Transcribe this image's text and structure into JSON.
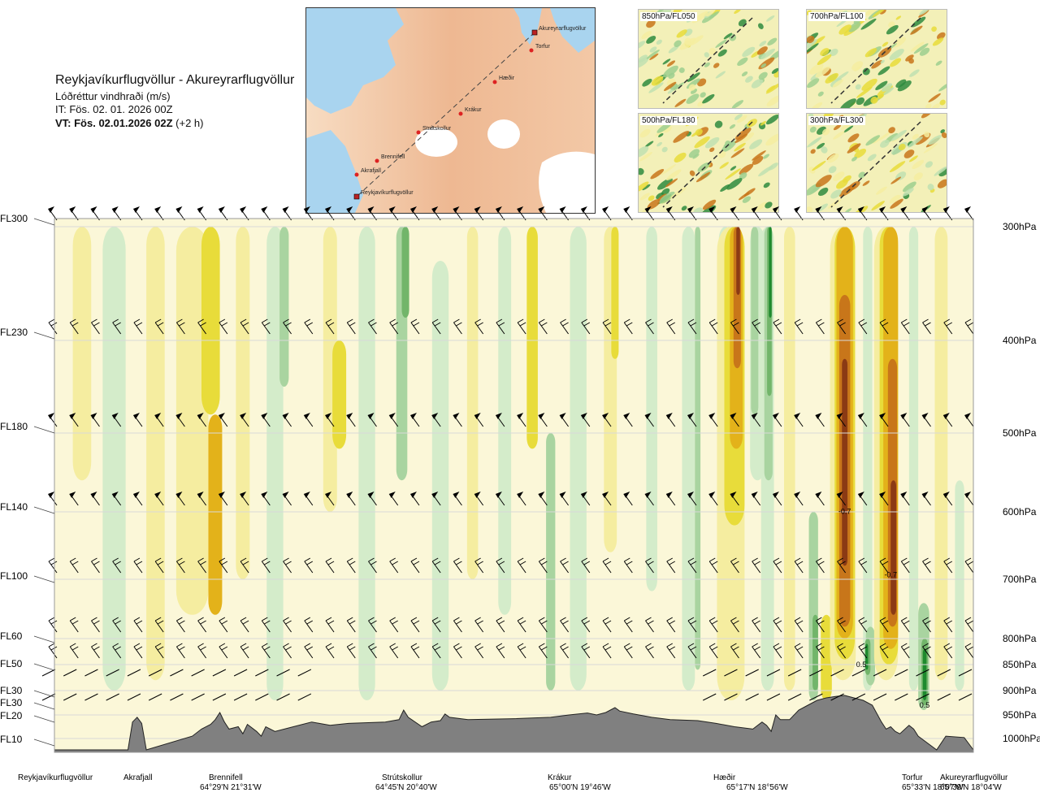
{
  "header": {
    "title": "Reykjavíkurflugvöllur - Akureyrarflugvöllur",
    "subtitle": "Lóðréttur vindhraði (m/s)",
    "init_time": "IT: Fös. 02. 01. 2026 00Z",
    "valid_prefix": "VT: Fös. 02.01.2026 02Z",
    "valid_suffix": "(+2 h)"
  },
  "map": {
    "route_points": [
      {
        "name": "Akureyrarflugvöllur"
      },
      {
        "name": "Torfur"
      },
      {
        "name": "Hæðir"
      },
      {
        "name": "Krákur"
      },
      {
        "name": "Strútskollur"
      },
      {
        "name": "Brennifell"
      },
      {
        "name": "Akrafjall"
      },
      {
        "name": "Reykjavíkurflugvöllur"
      }
    ]
  },
  "thumbnails": [
    {
      "label": "850hPa/FL050"
    },
    {
      "label": "700hPa/FL100"
    },
    {
      "label": "500hPa/FL180"
    },
    {
      "label": "300hPa/FL300"
    }
  ],
  "chart_data": {
    "type": "heatmap",
    "title": "Reykjavíkurflugvöllur - Akureyrarflugvöllur",
    "value_quantity": "Lóðréttur vindhraði (m/s)",
    "left_axis_ticks": [
      "FL300",
      "FL230",
      "FL180",
      "FL140",
      "FL100",
      "FL60",
      "FL50",
      "FL30",
      "FL30",
      "FL20",
      "FL10"
    ],
    "right_axis_ticks": [
      "300hPa",
      "400hPa",
      "500hPa",
      "600hPa",
      "700hPa",
      "800hPa",
      "850hPa",
      "900hPa",
      "950hPa",
      "1000hPa"
    ],
    "pressure_levels_hpa": [
      300,
      400,
      500,
      600,
      700,
      800,
      850,
      900,
      950,
      1000
    ],
    "route_distance_range": [
      0,
      1
    ],
    "terrain_fill": "#808080",
    "contour_labels": [
      {
        "text": "-0.7",
        "x": 0.86,
        "p": 603
      },
      {
        "text": "-0.7",
        "x": 0.91,
        "p": 697
      },
      {
        "text": "0.5",
        "x": 0.878,
        "p": 855
      },
      {
        "text": "0.5",
        "x": 0.947,
        "p": 935
      }
    ],
    "colors": {
      "strong_down": "#8b3a14",
      "down": "#c8761a",
      "mod_down": "#e3b21a",
      "weak_down": "#e8dc3a",
      "light_down": "#f5eda0",
      "near_zero": "#fbf7d8",
      "light_up": "#d4ecca",
      "weak_up": "#a9d4a0",
      "mod_up": "#72b56a",
      "strong_up": "#1e8a2e"
    },
    "stations": [
      {
        "name": "Reykjavíkurflugvöllur",
        "coord": ""
      },
      {
        "name": "Akrafjall",
        "coord": ""
      },
      {
        "name": "Brennifell",
        "coord": "64°29'N 21°31'W"
      },
      {
        "name": "Strútskollur",
        "coord": "64°45'N 20°40'W"
      },
      {
        "name": "Krákur",
        "coord": "65°00'N 19°46'W"
      },
      {
        "name": "Hæðir",
        "coord": "65°17'N 18°56'W"
      },
      {
        "name": "Torfur",
        "coord": "65°33'N 18°07'W"
      },
      {
        "name": "Akureyrarflugvöllur",
        "coord": "65°39'N 18°04'W"
      }
    ]
  }
}
